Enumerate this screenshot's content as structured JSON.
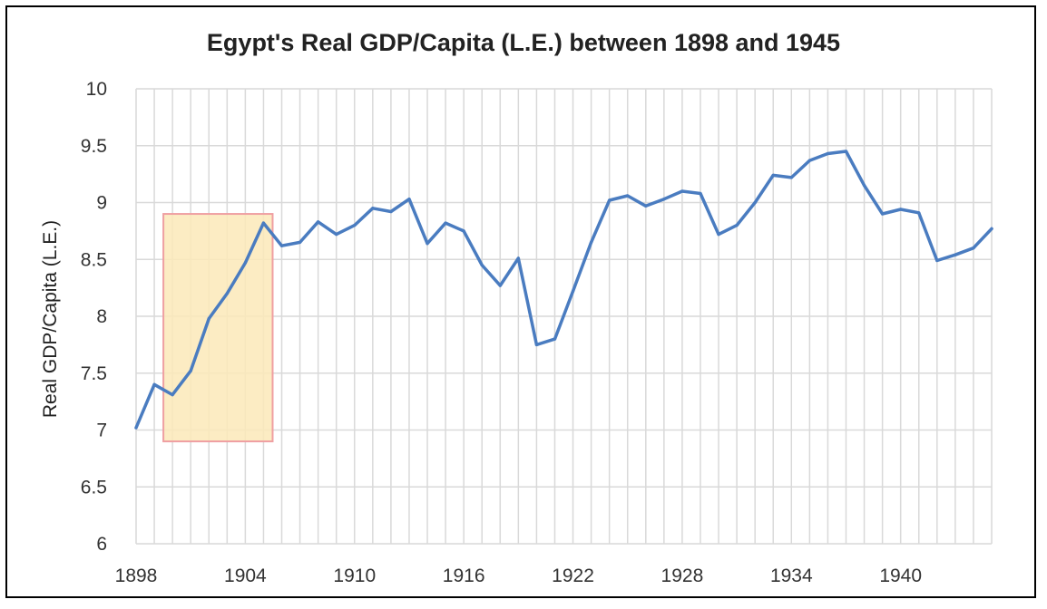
{
  "chart_data": {
    "type": "line",
    "title": "Egypt's Real GDP/Capita (L.E.) between 1898 and 1945",
    "xlabel": "",
    "ylabel": "Real GDP/Capita (L.E.)",
    "ylim": [
      6,
      10
    ],
    "yticks": [
      "6",
      "6.5",
      "7",
      "7.5",
      "8",
      "8.5",
      "9",
      "9.5",
      "10"
    ],
    "xlim": [
      1898,
      1945
    ],
    "xticks": [
      "1898",
      "1904",
      "1910",
      "1916",
      "1922",
      "1928",
      "1934",
      "1940"
    ],
    "grid": "vertical and horizontal",
    "line_color": "#4a7cc0",
    "highlight": {
      "x_range": [
        1899.5,
        1905.5
      ],
      "y_range": [
        6.9,
        8.9
      ],
      "fill": "#fbe9b9",
      "stroke": "#ef9fa2"
    },
    "series": [
      {
        "x": [
          1898,
          1899,
          1900,
          1901,
          1902,
          1903,
          1904,
          1905,
          1906,
          1907,
          1908,
          1909,
          1910,
          1911,
          1912,
          1913,
          1914,
          1915,
          1916,
          1917,
          1918,
          1919,
          1920,
          1921,
          1922,
          1923,
          1924,
          1925,
          1926,
          1927,
          1928,
          1929,
          1930,
          1931,
          1932,
          1933,
          1934,
          1935,
          1936,
          1937,
          1938,
          1939,
          1940,
          1941,
          1942,
          1943,
          1944,
          1945
        ],
        "values": [
          7.02,
          7.4,
          7.31,
          7.52,
          7.98,
          8.2,
          8.47,
          8.82,
          8.62,
          8.65,
          8.83,
          8.72,
          8.8,
          8.95,
          8.92,
          9.03,
          8.64,
          8.82,
          8.75,
          8.45,
          8.27,
          8.51,
          7.75,
          7.8,
          8.22,
          8.65,
          9.02,
          9.06,
          8.97,
          9.03,
          9.1,
          9.08,
          8.72,
          8.8,
          9.0,
          9.24,
          9.22,
          9.37,
          9.43,
          9.45,
          9.15,
          8.9,
          8.94,
          8.91,
          8.49,
          8.54,
          8.6,
          8.77
        ]
      }
    ]
  }
}
